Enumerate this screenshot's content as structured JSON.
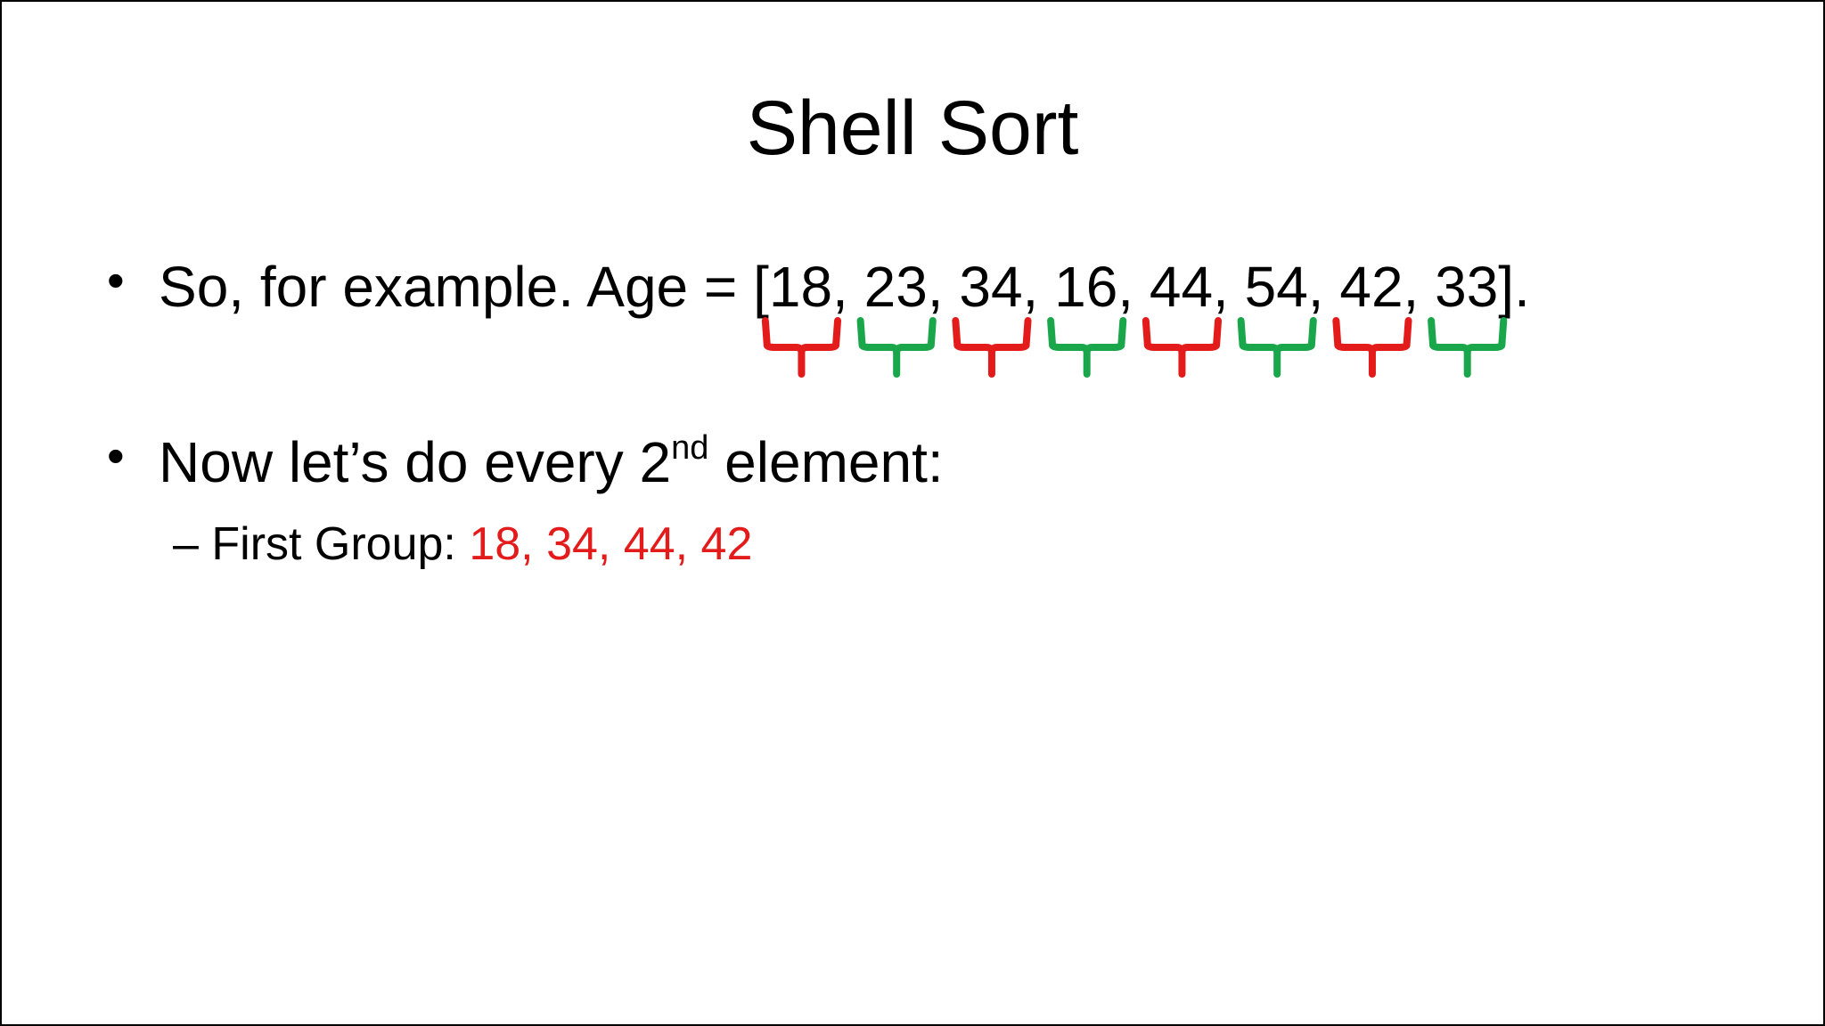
{
  "slide": {
    "title": "Shell Sort",
    "bullet_char": "•",
    "bullet1": {
      "prefix": "So, for example. Age = [",
      "values": [
        "18",
        "23",
        "34",
        "16",
        "44",
        "54",
        "42",
        "33"
      ],
      "separator": ", ",
      "suffix": "]."
    },
    "bullet2": {
      "text_before": "Now let’s do every 2",
      "superscript": "nd",
      "text_after": " element:"
    },
    "sub_bullet": {
      "dash": "–",
      "label": "First Group: ",
      "values": "18, 34, 44, 42"
    }
  },
  "braces": [
    {
      "element": "18",
      "group": "first",
      "color": "#e31b1b"
    },
    {
      "element": "23",
      "group": "second",
      "color": "#1aa64b"
    },
    {
      "element": "34",
      "group": "first",
      "color": "#e31b1b"
    },
    {
      "element": "16",
      "group": "second",
      "color": "#1aa64b"
    },
    {
      "element": "44",
      "group": "first",
      "color": "#e31b1b"
    },
    {
      "element": "54",
      "group": "second",
      "color": "#1aa64b"
    },
    {
      "element": "42",
      "group": "first",
      "color": "#e31b1b"
    },
    {
      "element": "33",
      "group": "second",
      "color": "#1aa64b"
    }
  ],
  "colors": {
    "first_group": "#e31b1b",
    "second_group": "#1aa64b",
    "text": "#000000",
    "background": "#ffffff"
  }
}
